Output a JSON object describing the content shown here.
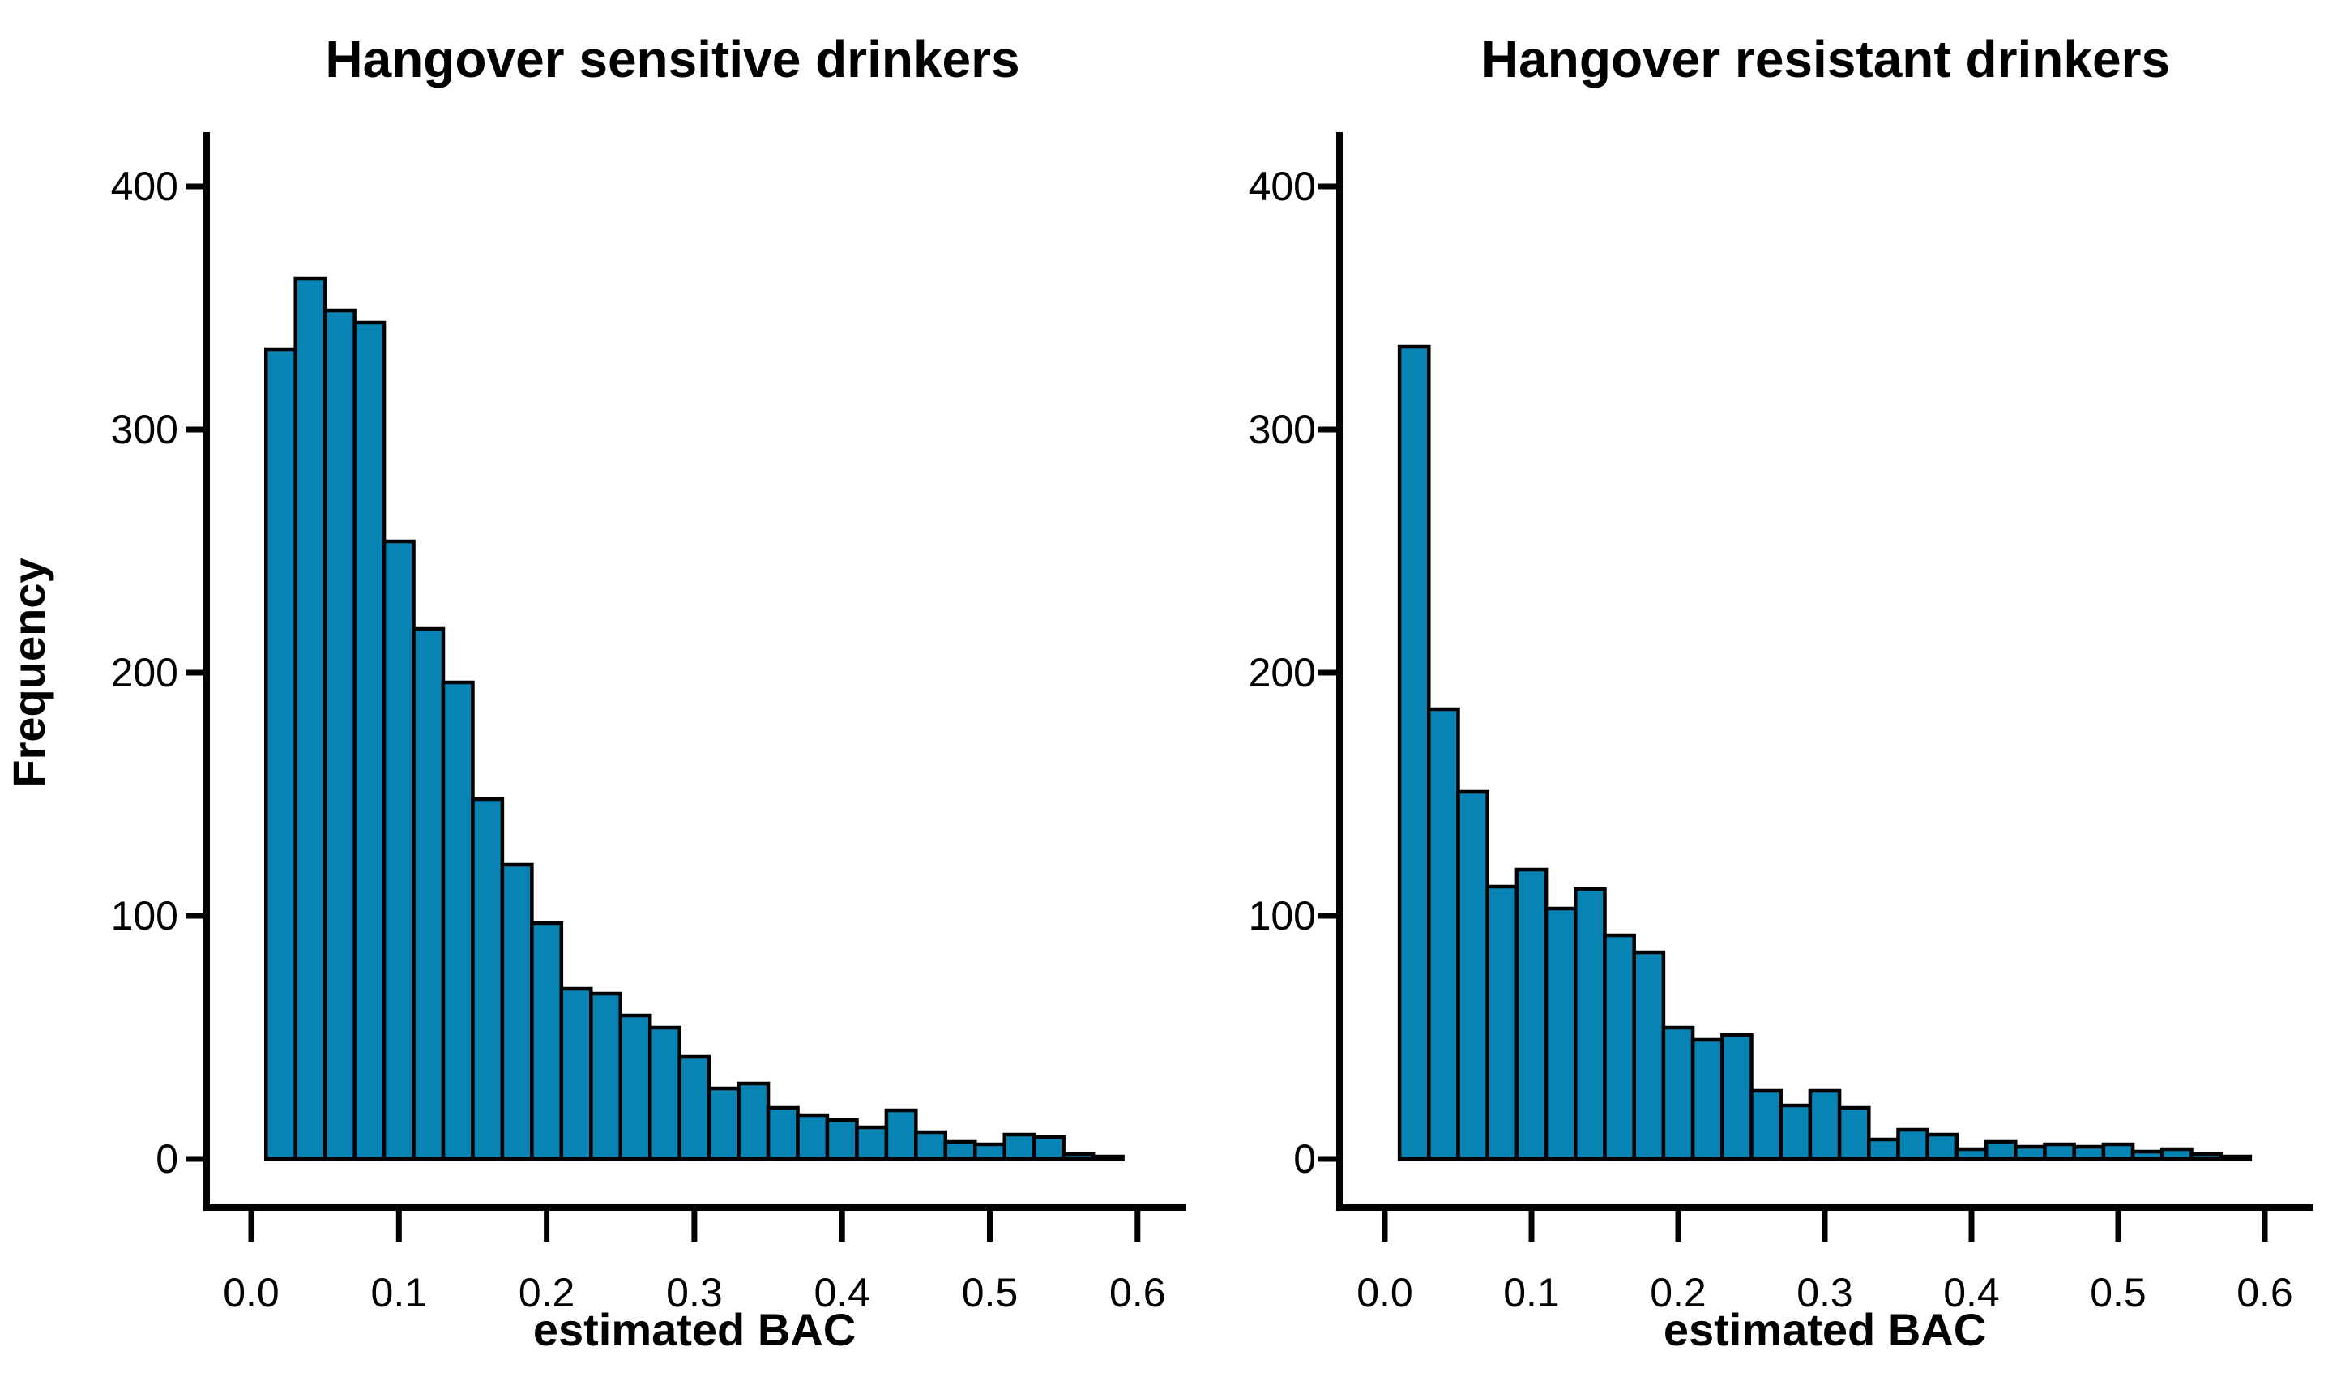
{
  "style": {
    "background": "#ffffff",
    "bar_fill": "#0884B4",
    "bar_stroke": "#000000",
    "axis_color": "#000000",
    "text_color": "#000000"
  },
  "chart_data": [
    {
      "type": "bar",
      "subtype": "histogram",
      "title": "Hangover sensitive drinkers",
      "xlabel": "estimated BAC",
      "ylabel": "Frequency",
      "x_tick_labels": [
        "0.0",
        "0.1",
        "0.2",
        "0.3",
        "0.4",
        "0.5",
        "0.6"
      ],
      "x_tick_values": [
        0.0,
        0.1,
        0.2,
        0.3,
        0.4,
        0.5,
        0.6
      ],
      "y_tick_labels": [
        "0",
        "100",
        "200",
        "300",
        "400"
      ],
      "y_tick_values": [
        0,
        100,
        200,
        300,
        400
      ],
      "xlim": [
        0,
        0.62
      ],
      "ylim": [
        0,
        400
      ],
      "grid": false,
      "legend": "none",
      "bin_start": 0.01,
      "bin_width": 0.02,
      "counts": [
        333,
        362,
        349,
        344,
        254,
        218,
        196,
        148,
        121,
        97,
        70,
        68,
        59,
        54,
        42,
        29,
        31,
        21,
        18,
        16,
        13,
        20,
        11,
        7,
        6,
        10,
        9,
        2,
        1
      ]
    },
    {
      "type": "bar",
      "subtype": "histogram",
      "title": "Hangover resistant drinkers",
      "xlabel": "estimated BAC",
      "ylabel": "",
      "x_tick_labels": [
        "0.0",
        "0.1",
        "0.2",
        "0.3",
        "0.4",
        "0.5",
        "0.6"
      ],
      "x_tick_values": [
        0.0,
        0.1,
        0.2,
        0.3,
        0.4,
        0.5,
        0.6
      ],
      "y_tick_labels": [
        "0",
        "100",
        "200",
        "300",
        "400"
      ],
      "y_tick_values": [
        0,
        100,
        200,
        300,
        400
      ],
      "xlim": [
        0,
        0.62
      ],
      "ylim": [
        0,
        400
      ],
      "grid": false,
      "legend": "none",
      "bin_start": 0.01,
      "bin_width": 0.02,
      "counts": [
        334,
        185,
        151,
        112,
        119,
        103,
        111,
        92,
        85,
        54,
        49,
        51,
        28,
        22,
        28,
        21,
        8,
        12,
        10,
        4,
        7,
        5,
        6,
        5,
        6,
        3,
        4,
        2,
        1
      ]
    }
  ]
}
